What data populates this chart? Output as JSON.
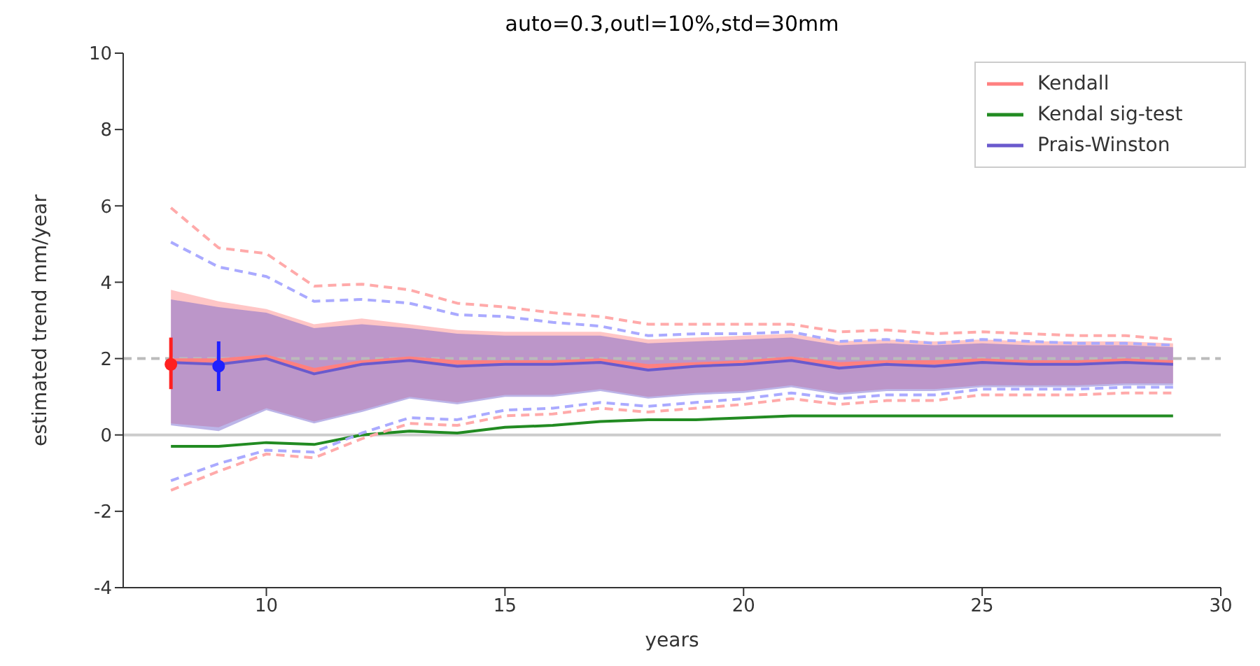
{
  "chart_data": {
    "type": "line",
    "title": "auto=0.3,outl=10%,std=30mm",
    "xlabel": "years",
    "ylabel": "estimated trend mm/year",
    "x": [
      8,
      9,
      10,
      11,
      12,
      13,
      14,
      15,
      16,
      17,
      18,
      19,
      20,
      21,
      22,
      23,
      24,
      25,
      26,
      27,
      28,
      29
    ],
    "xlim": [
      7,
      30
    ],
    "xticks": [
      10,
      15,
      20,
      25,
      30
    ],
    "ylim": [
      -4,
      10
    ],
    "yticks": [
      -4,
      -2,
      0,
      2,
      4,
      6,
      8,
      10
    ],
    "grid": false,
    "legend": "top right",
    "marker": "none",
    "ref_lines": [
      {
        "axis": "y",
        "value": 0,
        "color": "#cccccc",
        "line_style": "solid"
      },
      {
        "axis": "y",
        "value": 2,
        "color": "#bbbbbb",
        "line_style": "dashed"
      }
    ],
    "series": [
      {
        "name": "Kendall",
        "color": "#ff8080",
        "values": [
          1.95,
          1.95,
          2.05,
          1.7,
          1.9,
          2.0,
          1.9,
          1.9,
          1.9,
          1.95,
          1.8,
          1.85,
          1.9,
          2.0,
          1.85,
          1.9,
          1.9,
          1.95,
          1.9,
          1.9,
          1.95,
          1.9
        ],
        "lower": [
          0.3,
          0.2,
          0.7,
          0.35,
          0.65,
          1.0,
          0.85,
          1.05,
          1.05,
          1.2,
          1.0,
          1.1,
          1.15,
          1.3,
          1.1,
          1.2,
          1.2,
          1.3,
          1.3,
          1.3,
          1.35,
          1.35
        ],
        "upper": [
          3.8,
          3.5,
          3.3,
          2.9,
          3.05,
          2.9,
          2.75,
          2.7,
          2.7,
          2.7,
          2.5,
          2.55,
          2.6,
          2.65,
          2.45,
          2.5,
          2.45,
          2.5,
          2.45,
          2.45,
          2.45,
          2.4
        ]
      },
      {
        "name": "Kendal sig-test",
        "color": "#228b22",
        "values": [
          -0.3,
          -0.3,
          -0.2,
          -0.25,
          0,
          0.1,
          0.05,
          0.2,
          0.25,
          0.35,
          0.4,
          0.4,
          0.45,
          0.5,
          0.5,
          0.5,
          0.5,
          0.5,
          0.5,
          0.5,
          0.5,
          0.5
        ]
      },
      {
        "name": "Prais-Winston",
        "color": "#6a5acd",
        "values": [
          1.9,
          1.85,
          2.0,
          1.6,
          1.85,
          1.95,
          1.8,
          1.85,
          1.85,
          1.9,
          1.7,
          1.8,
          1.85,
          1.95,
          1.75,
          1.85,
          1.8,
          1.9,
          1.85,
          1.85,
          1.9,
          1.85
        ],
        "lower": [
          0.25,
          0.1,
          0.65,
          0.3,
          0.6,
          0.95,
          0.8,
          1.0,
          1.0,
          1.15,
          0.95,
          1.05,
          1.1,
          1.25,
          1.05,
          1.15,
          1.15,
          1.25,
          1.25,
          1.25,
          1.3,
          1.3
        ],
        "upper": [
          3.55,
          3.35,
          3.2,
          2.8,
          2.9,
          2.8,
          2.65,
          2.6,
          2.6,
          2.6,
          2.4,
          2.45,
          2.5,
          2.55,
          2.35,
          2.4,
          2.35,
          2.4,
          2.35,
          2.35,
          2.35,
          2.3
        ]
      },
      {
        "color": "#ffaaaa",
        "line_style": "dashed",
        "values": [
          5.95,
          4.9,
          4.75,
          3.9,
          3.95,
          3.8,
          3.45,
          3.35,
          3.2,
          3.1,
          2.9,
          2.9,
          2.9,
          2.9,
          2.7,
          2.75,
          2.65,
          2.7,
          2.65,
          2.6,
          2.6,
          2.5
        ]
      },
      {
        "color": "#aaaaff",
        "line_style": "dashed",
        "values": [
          5.05,
          4.4,
          4.15,
          3.5,
          3.55,
          3.45,
          3.15,
          3.1,
          2.95,
          2.85,
          2.6,
          2.65,
          2.65,
          2.7,
          2.45,
          2.5,
          2.4,
          2.5,
          2.45,
          2.4,
          2.4,
          2.35
        ]
      },
      {
        "color": "#ffaaaa",
        "line_style": "dashed",
        "values": [
          -1.45,
          -0.95,
          -0.5,
          -0.6,
          -0.1,
          0.3,
          0.25,
          0.5,
          0.55,
          0.7,
          0.6,
          0.7,
          0.8,
          0.95,
          0.8,
          0.9,
          0.9,
          1.05,
          1.05,
          1.05,
          1.1,
          1.1
        ]
      },
      {
        "color": "#aaaaff",
        "line_style": "dashed",
        "values": [
          -1.2,
          -0.75,
          -0.4,
          -0.45,
          0.05,
          0.45,
          0.4,
          0.65,
          0.7,
          0.85,
          0.75,
          0.85,
          0.95,
          1.1,
          0.95,
          1.05,
          1.05,
          1.2,
          1.2,
          1.2,
          1.25,
          1.25
        ]
      },
      {
        "type": "scatter",
        "marker": "circle",
        "color": "#ff2020",
        "x": [
          8
        ],
        "values": [
          1.85
        ],
        "errors": [
          [
            1.2,
            2.55
          ]
        ]
      },
      {
        "type": "scatter",
        "marker": "circle",
        "color": "#2020ff",
        "x": [
          9
        ],
        "values": [
          1.8
        ],
        "errors": [
          [
            1.15,
            2.45
          ]
        ]
      }
    ]
  }
}
